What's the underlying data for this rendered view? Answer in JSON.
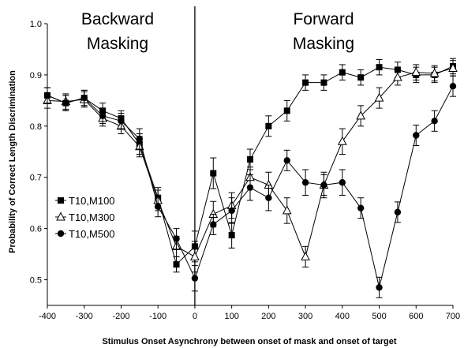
{
  "chart_data": {
    "type": "line",
    "xlabel": "Stimulus Onset Asynchrony between onset of mask and onset of target",
    "ylabel": "Probability of Correct Length Discrimination",
    "xlim": [
      -400,
      700
    ],
    "ylim": [
      0.45,
      1.0
    ],
    "xticks": [
      -400,
      -300,
      -200,
      -100,
      0,
      100,
      200,
      300,
      400,
      500,
      600,
      700
    ],
    "yticks": [
      0.5,
      0.6,
      0.7,
      0.8,
      0.9,
      1.0
    ],
    "ytick_labels": [
      "0.5",
      "0.6",
      "0.7",
      "0.8",
      "0.9",
      "1.0"
    ],
    "annotations": [
      {
        "lines": [
          "Backward",
          "Masking"
        ]
      },
      {
        "lines": [
          "Forward",
          "Masking"
        ]
      }
    ],
    "legend_position": "left",
    "x": [
      -400,
      -350,
      -300,
      -250,
      -200,
      -150,
      -100,
      -50,
      0,
      50,
      100,
      150,
      200,
      250,
      300,
      350,
      400,
      450,
      500,
      550,
      600,
      650,
      700
    ],
    "series": [
      {
        "name": "T10,M100",
        "marker": "filled-square",
        "values": [
          0.86,
          0.845,
          0.855,
          0.83,
          0.815,
          0.765,
          0.66,
          0.53,
          0.565,
          0.708,
          0.587,
          0.735,
          0.8,
          0.83,
          0.885,
          0.885,
          0.905,
          0.895,
          0.915,
          0.91,
          0.9,
          0.9,
          0.917
        ],
        "errors": [
          0.015,
          0.015,
          0.015,
          0.015,
          0.015,
          0.02,
          0.02,
          0.015,
          0.03,
          0.03,
          0.025,
          0.02,
          0.02,
          0.02,
          0.015,
          0.015,
          0.015,
          0.015,
          0.015,
          0.015,
          0.015,
          0.015,
          0.015
        ]
      },
      {
        "name": "T10,M300",
        "marker": "open-triangle",
        "values": [
          0.85,
          0.848,
          0.852,
          0.815,
          0.8,
          0.76,
          0.655,
          0.565,
          0.545,
          0.628,
          0.645,
          0.7,
          0.685,
          0.635,
          0.545,
          0.685,
          0.77,
          0.82,
          0.855,
          0.895,
          0.905,
          0.903,
          0.913
        ],
        "errors": [
          0.015,
          0.015,
          0.015,
          0.015,
          0.015,
          0.02,
          0.02,
          0.02,
          0.03,
          0.025,
          0.025,
          0.02,
          0.025,
          0.025,
          0.02,
          0.02,
          0.025,
          0.02,
          0.02,
          0.015,
          0.015,
          0.015,
          0.015
        ]
      },
      {
        "name": "T10,M500",
        "marker": "filled-circle",
        "values": [
          0.86,
          0.845,
          0.855,
          0.82,
          0.81,
          0.775,
          0.643,
          0.58,
          0.503,
          0.608,
          0.635,
          0.68,
          0.66,
          0.733,
          0.69,
          0.685,
          0.69,
          0.64,
          0.485,
          0.632,
          0.782,
          0.81,
          0.878
        ],
        "errors": [
          0.015,
          0.015,
          0.015,
          0.015,
          0.015,
          0.02,
          0.02,
          0.02,
          0.025,
          0.02,
          0.025,
          0.025,
          0.025,
          0.02,
          0.025,
          0.025,
          0.025,
          0.02,
          0.02,
          0.02,
          0.02,
          0.02,
          0.02
        ]
      }
    ]
  }
}
